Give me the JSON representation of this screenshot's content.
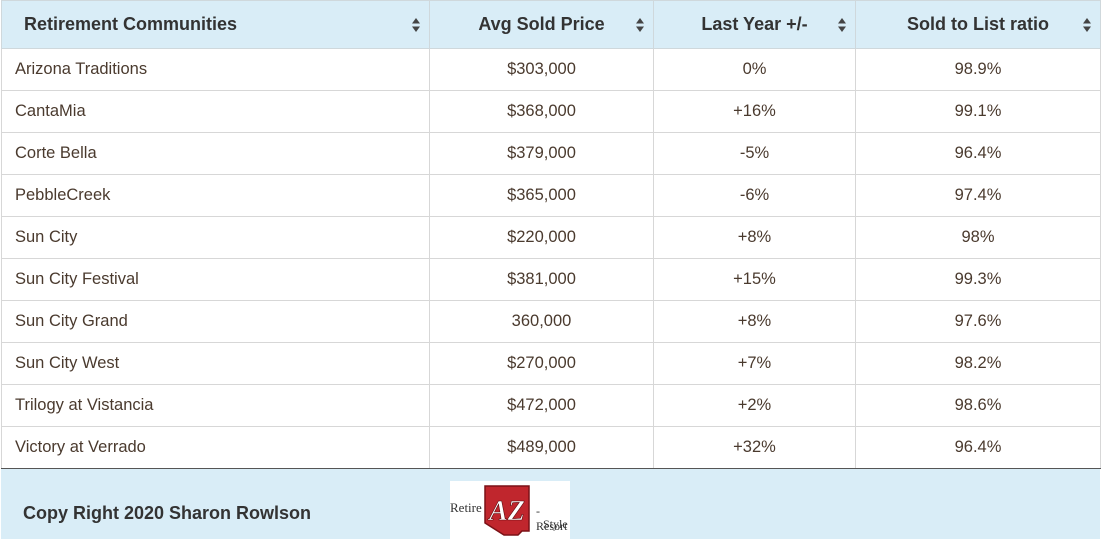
{
  "table": {
    "headers": [
      "Retirement Communities",
      "Avg Sold Price",
      "Last Year +/-",
      "Sold to List ratio"
    ],
    "rows": [
      {
        "community": "Arizona Traditions",
        "avg_sold_price": "$303,000",
        "last_year": "0%",
        "sold_to_list": "98.9%"
      },
      {
        "community": "CantaMia",
        "avg_sold_price": "$368,000",
        "last_year": "+16%",
        "sold_to_list": "99.1%"
      },
      {
        "community": "Corte Bella",
        "avg_sold_price": "$379,000",
        "last_year": "-5%",
        "sold_to_list": "96.4%"
      },
      {
        "community": "PebbleCreek",
        "avg_sold_price": "$365,000",
        "last_year": "-6%",
        "sold_to_list": "97.4%"
      },
      {
        "community": "Sun City",
        "avg_sold_price": "$220,000",
        "last_year": "+8%",
        "sold_to_list": "98%"
      },
      {
        "community": "Sun City Festival",
        "avg_sold_price": "$381,000",
        "last_year": "+15%",
        "sold_to_list": "99.3%"
      },
      {
        "community": "Sun City Grand",
        "avg_sold_price": "360,000",
        "last_year": "+8%",
        "sold_to_list": "97.6%"
      },
      {
        "community": "Sun City West",
        "avg_sold_price": "$270,000",
        "last_year": "+7%",
        "sold_to_list": "98.2%"
      },
      {
        "community": "Trilogy at Vistancia",
        "avg_sold_price": "$472,000",
        "last_year": "+2%",
        "sold_to_list": "98.6%"
      },
      {
        "community": "Victory at Verrado",
        "avg_sold_price": "$489,000",
        "last_year": "+32%",
        "sold_to_list": "96.4%"
      }
    ]
  },
  "footer": {
    "copyright": "Copy Right 2020 Sharon Rowlson",
    "logo_text": {
      "left": "Retire",
      "az": "AZ",
      "right_top": "-Resort",
      "right_bottom": "Style"
    }
  },
  "icons": {
    "sort": "sort-icon",
    "logo": "retire-az-logo"
  },
  "colors": {
    "header_bg": "#d9edf7",
    "footer_bg": "#d9edf7",
    "cell_text": "#4a3a2e",
    "logo_red": "#c0262d"
  }
}
